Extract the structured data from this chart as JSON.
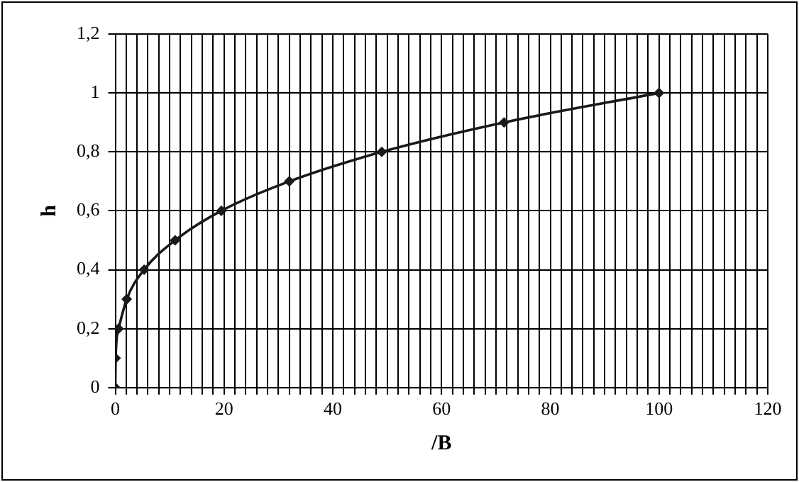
{
  "chart_data": {
    "type": "line",
    "xlabel": "/B",
    "ylabel": "h",
    "x": [
      0,
      0.06,
      0.6,
      2.1,
      5.3,
      11,
      19.5,
      32,
      49,
      71.5,
      100
    ],
    "series": [
      {
        "color": "#1a1a1a",
        "values": [
          0,
          0.1,
          0.2,
          0.3,
          0.4,
          0.5,
          0.6,
          0.7,
          0.8,
          0.9,
          1
        ]
      }
    ],
    "xlim": [
      0,
      120
    ],
    "xticks": [
      0,
      {
        "value": 2,
        "label": null
      },
      {
        "value": 4,
        "label": null
      },
      {
        "value": 6,
        "label": null
      },
      {
        "value": 8,
        "label": null
      },
      {
        "value": 10,
        "label": null
      },
      {
        "value": 12,
        "label": null
      },
      {
        "value": 14,
        "label": null
      },
      {
        "value": 16,
        "label": null
      },
      {
        "value": 18,
        "label": null
      },
      20,
      {
        "value": 22,
        "label": null
      },
      {
        "value": 24,
        "label": null
      },
      {
        "value": 26,
        "label": null
      },
      {
        "value": 28,
        "label": null
      },
      {
        "value": 30,
        "label": null
      },
      {
        "value": 32,
        "label": null
      },
      {
        "value": 34,
        "label": null
      },
      {
        "value": 36,
        "label": null
      },
      {
        "value": 38,
        "label": null
      },
      40,
      {
        "value": 42,
        "label": null
      },
      {
        "value": 44,
        "label": null
      },
      {
        "value": 46,
        "label": null
      },
      {
        "value": 48,
        "label": null
      },
      {
        "value": 50,
        "label": null
      },
      {
        "value": 52,
        "label": null
      },
      {
        "value": 54,
        "label": null
      },
      {
        "value": 56,
        "label": null
      },
      {
        "value": 58,
        "label": null
      },
      60,
      {
        "value": 62,
        "label": null
      },
      {
        "value": 64,
        "label": null
      },
      {
        "value": 66,
        "label": null
      },
      {
        "value": 68,
        "label": null
      },
      {
        "value": 70,
        "label": null
      },
      {
        "value": 72,
        "label": null
      },
      {
        "value": 74,
        "label": null
      },
      {
        "value": 76,
        "label": null
      },
      {
        "value": 78,
        "label": null
      },
      80,
      {
        "value": 82,
        "label": null
      },
      {
        "value": 84,
        "label": null
      },
      {
        "value": 86,
        "label": null
      },
      {
        "value": 88,
        "label": null
      },
      {
        "value": 90,
        "label": null
      },
      {
        "value": 92,
        "label": null
      },
      {
        "value": 94,
        "label": null
      },
      {
        "value": 96,
        "label": null
      },
      {
        "value": 98,
        "label": null
      },
      100,
      {
        "value": 102,
        "label": null
      },
      {
        "value": 104,
        "label": null
      },
      {
        "value": 106,
        "label": null
      },
      {
        "value": 108,
        "label": null
      },
      {
        "value": 110,
        "label": null
      },
      {
        "value": 112,
        "label": null
      },
      {
        "value": 114,
        "label": null
      },
      {
        "value": 116,
        "label": null
      },
      {
        "value": 118,
        "label": null
      },
      120
    ],
    "ylim": [
      0,
      1.2
    ],
    "yticks": [
      0,
      {
        "value": 0.2,
        "label": "0,2"
      },
      {
        "value": 0.4,
        "label": "0,4"
      },
      {
        "value": 0.6,
        "label": "0,6"
      },
      {
        "value": 0.8,
        "label": "0,8"
      },
      1,
      {
        "value": 1.2,
        "label": "1,2"
      }
    ],
    "grid": true,
    "legend": false,
    "marker": "diamond",
    "line_style": "solid"
  }
}
